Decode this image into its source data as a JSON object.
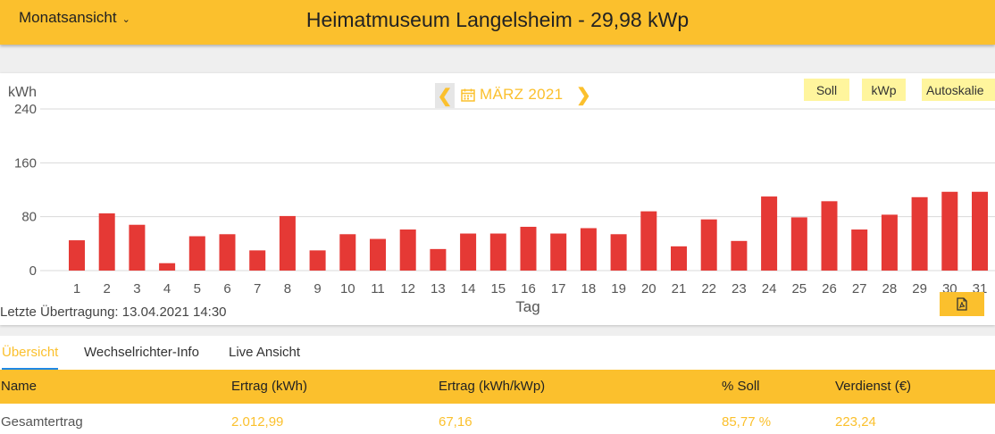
{
  "header": {
    "view_label": "Monatsansicht",
    "title": "Heimatmuseum Langelsheim - 29,98 kWp"
  },
  "chart_controls": {
    "month_label": "MÄRZ 2021",
    "prev_icon": "chevron-left-icon",
    "next_icon": "chevron-right-icon",
    "calendar_icon": "calendar-icon",
    "buttons": {
      "soll": "Soll",
      "kwp": "kWp",
      "autoscale": "Autoskalie"
    },
    "last_transfer": "Letzte Übertragung: 13.04.2021 14:30",
    "export_icon": "pdf-export-icon"
  },
  "colors": {
    "accent": "#fbc02d",
    "bar": "#e53935",
    "chip": "#fff59d",
    "tab_underline": "#1e88e5"
  },
  "chart_data": {
    "type": "bar",
    "ylabel": "kWh",
    "xlabel": "Tag",
    "ylim": [
      0,
      240
    ],
    "yticks": [
      0,
      80,
      160,
      240
    ],
    "grid": true,
    "categories": [
      "1",
      "2",
      "3",
      "4",
      "5",
      "6",
      "7",
      "8",
      "9",
      "10",
      "11",
      "12",
      "13",
      "14",
      "15",
      "16",
      "17",
      "18",
      "19",
      "20",
      "21",
      "22",
      "23",
      "24",
      "25",
      "26",
      "27",
      "28",
      "29",
      "30",
      "31"
    ],
    "values": [
      45,
      85,
      68,
      11,
      51,
      54,
      30,
      81,
      30,
      54,
      47,
      61,
      32,
      55,
      55,
      65,
      55,
      63,
      54,
      88,
      36,
      76,
      44,
      110,
      79,
      103,
      61,
      83,
      109,
      117,
      117
    ]
  },
  "tabs": [
    {
      "label": "Übersicht",
      "active": true
    },
    {
      "label": "Wechselrichter-Info",
      "active": false
    },
    {
      "label": "Live Ansicht",
      "active": false
    }
  ],
  "table": {
    "headers": [
      "Name",
      "Ertrag (kWh)",
      "Ertrag (kWh/kWp)",
      "% Soll",
      "Verdienst (€)"
    ],
    "rows": [
      [
        "Gesamtertrag",
        "2.012,99",
        "67,16",
        "85,77 %",
        "223,24"
      ]
    ]
  }
}
